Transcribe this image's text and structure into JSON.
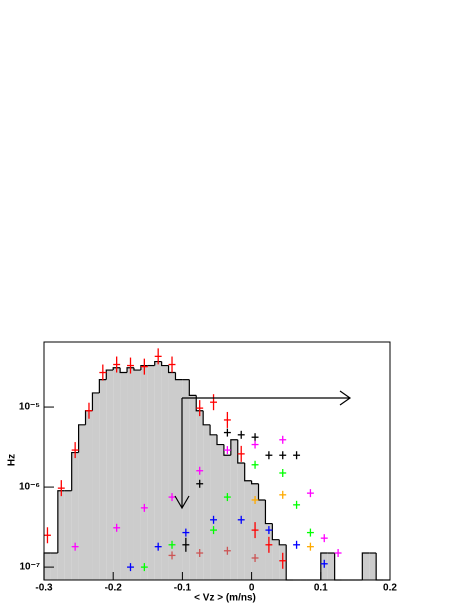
{
  "chart_data": {
    "type": "histogram",
    "xlabel": "< Vz > (m/ns)",
    "ylabel": "Hz",
    "log_y": true,
    "xlim": [
      -0.3,
      0.2
    ],
    "xticks": [
      -0.3,
      -0.2,
      -0.1,
      0,
      0.1,
      0.2
    ],
    "ylim": [
      6.9e-08,
      6.5e-05
    ],
    "yticks": [
      {
        "value": 1e-07,
        "label": "10⁻⁷"
      },
      {
        "value": 1e-06,
        "label": "10⁻⁶"
      },
      {
        "value": 1e-05,
        "label": "10⁻⁵"
      }
    ],
    "color": "#cccccc",
    "bins": [
      -0.3,
      -0.29,
      -0.28,
      -0.27,
      -0.26,
      -0.25,
      -0.24,
      -0.23,
      -0.22,
      -0.21,
      -0.2,
      -0.19,
      -0.18,
      -0.17,
      -0.16,
      -0.15,
      -0.14,
      -0.13,
      -0.12,
      -0.11,
      -0.1,
      -0.09,
      -0.08,
      -0.07,
      -0.06,
      -0.05,
      -0.04,
      -0.03,
      -0.02,
      -0.01,
      0,
      0.01,
      0.02,
      0.03,
      0.04,
      0.05,
      0.06,
      0.07,
      0.08,
      0.09,
      0.1,
      0.11,
      0.12,
      0.13,
      0.14,
      0.15,
      0.16,
      0.17,
      0.18,
      0.19,
      0.2
    ],
    "counts": [
      1.5e-07,
      1.5e-07,
      9e-07,
      9e-07,
      2.7e-06,
      6e-06,
      9e-06,
      1.5e-05,
      2.2e-05,
      2.9e-05,
      3.1e-05,
      2.7e-05,
      3.1e-05,
      2.9e-05,
      3.3e-05,
      3.3e-05,
      3.7e-05,
      3.3e-05,
      2.7e-05,
      2.2e-05,
      2.2e-05,
      1.4e-05,
      9e-06,
      6e-06,
      4.5e-06,
      3.4e-06,
      2.5e-06,
      3.9e-06,
      2e-06,
      1.2e-06,
      1.1e-06,
      6.9e-07,
      3.5e-07,
      2.2e-07,
      1.9e-07,
      0,
      0,
      0,
      0,
      0,
      1.5e-07,
      1.5e-07,
      0,
      0,
      0,
      0,
      1.5e-07,
      1.5e-07,
      0,
      0
    ],
    "series": [
      {
        "color": "#ff0000",
        "x": [
          -0.295,
          -0.275,
          -0.255,
          -0.235,
          -0.215,
          -0.195,
          -0.175,
          -0.155,
          -0.135,
          -0.115,
          -0.075,
          -0.055,
          -0.035,
          -0.015,
          0.005,
          0.025,
          0.045
        ],
        "values": [
          2.5e-07,
          9.7e-07,
          2.9e-06,
          9e-06,
          2.7e-05,
          3.4e-05,
          3.3e-05,
          3.2e-05,
          4.3e-05,
          3.4e-05,
          9.7e-06,
          1.15e-05,
          6.9e-06,
          2.6e-06,
          2.9e-07,
          1.9e-07,
          1.2e-07
        ]
      },
      {
        "color": "#000000",
        "x": [
          -0.095,
          -0.075,
          -0.035,
          -0.015,
          0.005,
          0.025,
          0.045,
          0.065
        ],
        "values": [
          1.9e-07,
          1.1e-06,
          4.8e-06,
          4.5e-06,
          4.2e-06,
          2.5e-06,
          2.5e-06,
          2.5e-06
        ]
      },
      {
        "color": "#ff00ff",
        "x": [
          -0.255,
          -0.195,
          -0.155,
          -0.115,
          -0.075,
          -0.035,
          0.005,
          0.045,
          0.085,
          0.105,
          0.125
        ],
        "values": [
          1.8e-07,
          3.1e-07,
          5.5e-07,
          7.5e-07,
          1.6e-06,
          2.9e-06,
          3.4e-06,
          3.9e-06,
          8.4e-07,
          2.3e-07,
          1.5e-07
        ]
      },
      {
        "color": "#00ff00",
        "x": [
          -0.155,
          -0.115,
          -0.055,
          -0.035,
          0.005,
          0.045,
          0.065,
          0.085
        ],
        "values": [
          1e-07,
          1.9e-07,
          2.9e-07,
          7.5e-07,
          1.9e-06,
          1.5e-06,
          6e-07,
          2.7e-07
        ]
      },
      {
        "color": "#0000ff",
        "x": [
          -0.175,
          -0.135,
          -0.095,
          -0.055,
          -0.015,
          0.025,
          0.065,
          0.105
        ],
        "values": [
          1e-07,
          1.8e-07,
          2.7e-07,
          3.9e-07,
          3.9e-07,
          2.9e-07,
          1.9e-07,
          1.1e-07
        ]
      },
      {
        "color": "#ffaa00",
        "x": [
          0.005,
          0.045,
          0.085
        ],
        "values": [
          6.9e-07,
          8e-07,
          1.8e-07
        ]
      },
      {
        "color": "#cc5555",
        "x": [
          -0.115,
          -0.075,
          -0.035,
          0.005
        ],
        "values": [
          1.4e-07,
          1.5e-07,
          1.6e-07,
          1.3e-07
        ]
      }
    ]
  }
}
